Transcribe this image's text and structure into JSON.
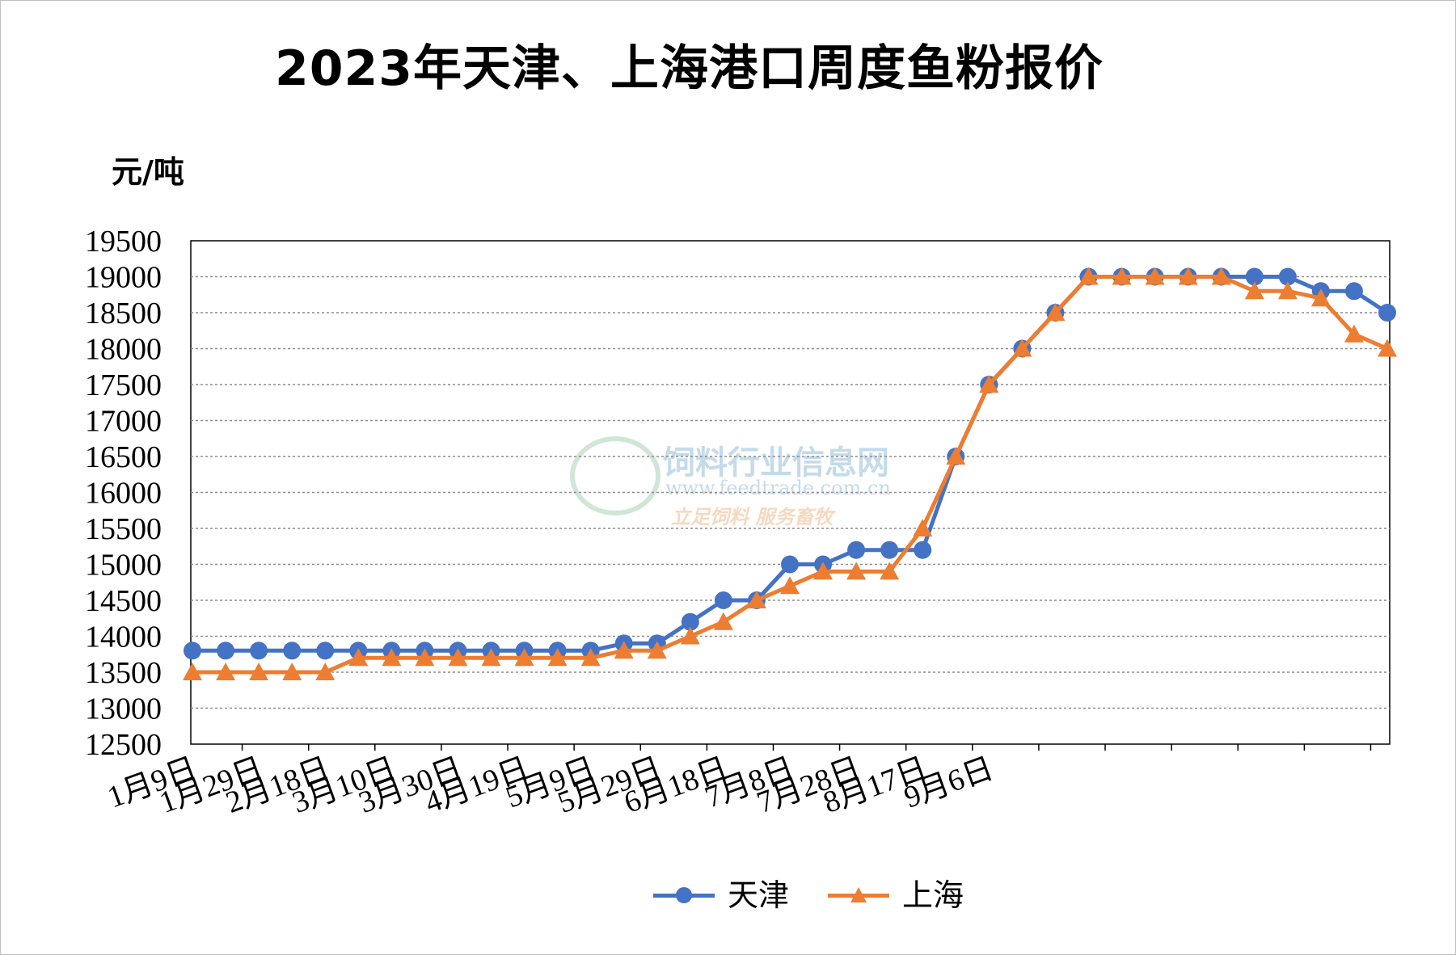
{
  "chart_data": {
    "type": "line",
    "title": "2023年天津、上海港口周度鱼粉报价",
    "ylabel": "元/吨",
    "ylim": [
      12500,
      19500
    ],
    "ytick_step": 500,
    "grid": true,
    "legend_position": "bottom",
    "x_tick_labels": [
      "1月9日",
      "1月29日",
      "2月18日",
      "3月10日",
      "3月30日",
      "4月19日",
      "5月9日",
      "5月29日",
      "6月18日",
      "7月8日",
      "7月28日",
      "8月17日",
      "9月6日"
    ],
    "series": [
      {
        "name": "天津",
        "color": "#4472C4",
        "marker": "circle",
        "values": [
          13800,
          13800,
          13800,
          13800,
          13800,
          13800,
          13800,
          13800,
          13800,
          13800,
          13800,
          13800,
          13800,
          13900,
          13900,
          14200,
          14500,
          14500,
          15000,
          15000,
          15200,
          15200,
          15200,
          16500,
          17500,
          18000,
          18500,
          19000,
          19000,
          19000,
          19000,
          19000,
          19000,
          19000,
          18800,
          18800,
          18500
        ]
      },
      {
        "name": "上海",
        "color": "#ED7D31",
        "marker": "triangle",
        "values": [
          13500,
          13500,
          13500,
          13500,
          13500,
          13700,
          13700,
          13700,
          13700,
          13700,
          13700,
          13700,
          13700,
          13800,
          13800,
          14000,
          14200,
          14500,
          14700,
          14900,
          14900,
          14900,
          15500,
          16500,
          17500,
          18000,
          18500,
          19000,
          19000,
          19000,
          19000,
          19000,
          18800,
          18800,
          18700,
          18200,
          18000
        ]
      }
    ]
  },
  "watermark": {
    "name": "饲料行业信息网",
    "url": "www.feedtrade.com.cn",
    "slogan": "立足饲料  服务畜牧"
  }
}
